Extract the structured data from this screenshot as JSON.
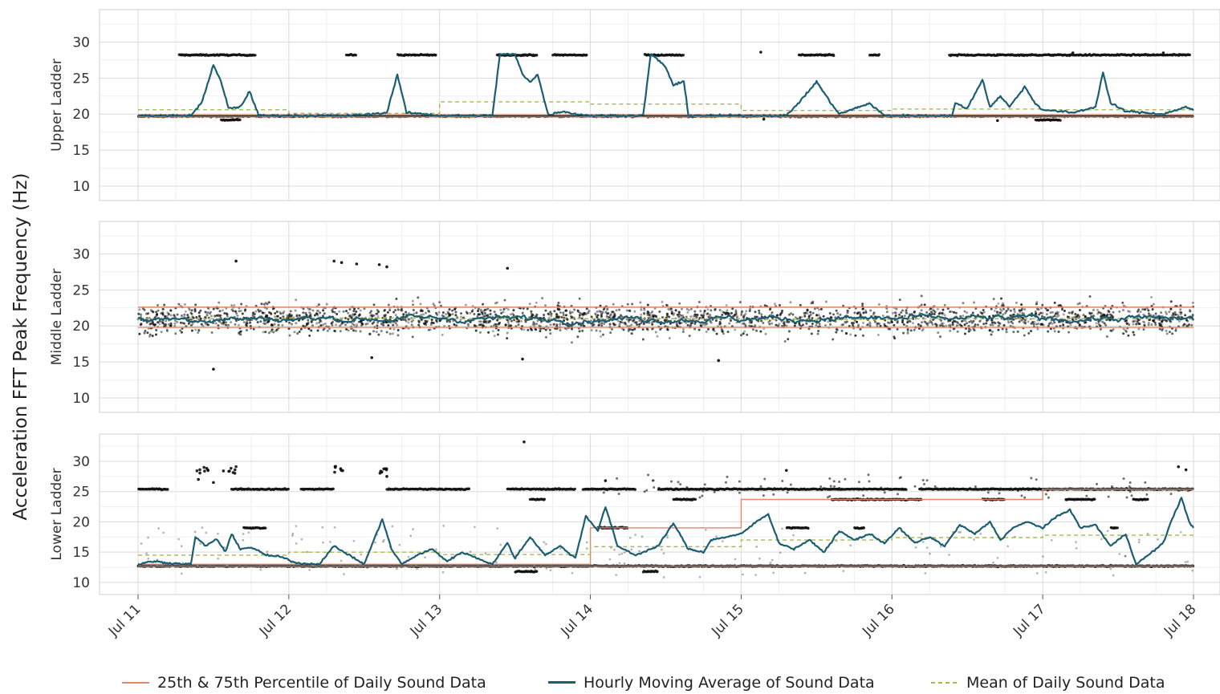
{
  "chart_data": {
    "type": "scatter",
    "ylabel": "Acceleration FFT Peak Frequency (Hz)",
    "x_ticks": [
      "Jul 11",
      "Jul 12",
      "Jul 13",
      "Jul 14",
      "Jul 15",
      "Jul 16",
      "Jul 17",
      "Jul 18"
    ],
    "xlim_days": [
      11,
      18
    ],
    "y_ticks": [
      10,
      15,
      20,
      25,
      30
    ],
    "ylim": [
      8,
      34.5
    ],
    "grid": true,
    "legend_position": "bottom",
    "colors": {
      "percentile": "#e0896a",
      "moving_avg": "#1b5e72",
      "mean": "#a9b84e",
      "points": "#111111",
      "panel_bg": "#ffffff",
      "grid": "#d9d9d9"
    },
    "legend": [
      {
        "label": "25th & 75th Percentile of Daily Sound Data",
        "color": "#e0896a",
        "style": "solid"
      },
      {
        "label": "Hourly Moving Average of Sound Data",
        "color": "#1b5e72",
        "style": "solid"
      },
      {
        "label": "Mean of Daily Sound Data",
        "color": "#a9b84e",
        "style": "dashed"
      }
    ],
    "panels": [
      {
        "label": "Upper Ladder",
        "p25_daily": [
          19.6,
          19.6,
          19.6,
          19.6,
          19.6,
          19.6,
          19.6
        ],
        "p75_daily": [
          19.9,
          19.9,
          19.9,
          19.9,
          19.9,
          19.9,
          19.9
        ],
        "mean_daily": [
          20.6,
          20.1,
          21.7,
          21.4,
          20.5,
          20.7,
          20.6
        ],
        "moving_average": [
          [
            11.0,
            19.8
          ],
          [
            11.35,
            19.8
          ],
          [
            11.42,
            21.5
          ],
          [
            11.5,
            26.8
          ],
          [
            11.55,
            24.5
          ],
          [
            11.6,
            20.8
          ],
          [
            11.68,
            21.0
          ],
          [
            11.74,
            23.2
          ],
          [
            11.8,
            19.8
          ],
          [
            12.4,
            19.8
          ],
          [
            12.55,
            20.0
          ],
          [
            12.65,
            20.2
          ],
          [
            12.72,
            25.5
          ],
          [
            12.78,
            20.2
          ],
          [
            12.9,
            20.0
          ],
          [
            13.0,
            19.8
          ],
          [
            13.35,
            19.8
          ],
          [
            13.4,
            28.3
          ],
          [
            13.5,
            28.3
          ],
          [
            13.55,
            25.5
          ],
          [
            13.6,
            24.5
          ],
          [
            13.65,
            25.5
          ],
          [
            13.72,
            19.9
          ],
          [
            13.82,
            20.4
          ],
          [
            13.9,
            20.0
          ],
          [
            14.0,
            19.8
          ],
          [
            14.35,
            19.8
          ],
          [
            14.4,
            28.3
          ],
          [
            14.45,
            27.5
          ],
          [
            14.5,
            26.5
          ],
          [
            14.55,
            24.0
          ],
          [
            14.62,
            24.5
          ],
          [
            14.65,
            19.8
          ],
          [
            15.3,
            19.8
          ],
          [
            15.4,
            22.0
          ],
          [
            15.5,
            24.5
          ],
          [
            15.58,
            22.0
          ],
          [
            15.65,
            20.0
          ],
          [
            15.85,
            21.5
          ],
          [
            15.95,
            19.8
          ],
          [
            16.4,
            19.8
          ],
          [
            16.42,
            21.5
          ],
          [
            16.5,
            20.8
          ],
          [
            16.6,
            24.8
          ],
          [
            16.65,
            21.0
          ],
          [
            16.72,
            22.5
          ],
          [
            16.78,
            21.0
          ],
          [
            16.88,
            23.8
          ],
          [
            16.95,
            21.5
          ],
          [
            17.0,
            20.6
          ],
          [
            17.2,
            20.2
          ],
          [
            17.35,
            21.0
          ],
          [
            17.4,
            25.8
          ],
          [
            17.45,
            21.5
          ],
          [
            17.55,
            20.4
          ],
          [
            17.8,
            20.0
          ],
          [
            17.95,
            21.0
          ],
          [
            18.0,
            20.5
          ]
        ],
        "point_bands": [
          {
            "value": 28.2,
            "ranges": [
              [
                11.27,
                11.78
              ],
              [
                12.38,
                12.45
              ],
              [
                12.72,
                12.98
              ],
              [
                13.38,
                13.65
              ],
              [
                13.75,
                13.98
              ],
              [
                14.36,
                14.62
              ],
              [
                15.38,
                15.62
              ],
              [
                15.85,
                15.92
              ],
              [
                16.38,
                17.98
              ]
            ]
          },
          {
            "value": 19.2,
            "ranges": [
              [
                11.55,
                11.68
              ],
              [
                16.95,
                17.12
              ]
            ]
          },
          {
            "value": 19.7,
            "ranges": [
              [
                11.0,
                18.0
              ]
            ]
          }
        ],
        "outliers": [
          [
            15.13,
            28.6
          ],
          [
            17.2,
            28.5
          ],
          [
            17.8,
            28.5
          ],
          [
            16.7,
            19.1
          ],
          [
            15.15,
            19.3
          ]
        ]
      },
      {
        "label": "Middle Ladder",
        "p25_daily": [
          19.8,
          19.8,
          19.8,
          19.8,
          19.8,
          19.8,
          19.8
        ],
        "p75_daily": [
          22.6,
          22.6,
          22.6,
          22.6,
          22.6,
          22.6,
          22.6
        ],
        "mean_daily": [
          21.0,
          21.1,
          21.0,
          21.0,
          20.9,
          21.0,
          21.0
        ],
        "moving_average_center": 21.0,
        "moving_average_spread": 1.0,
        "scatter_center": 21.0,
        "scatter_spread": 6.5,
        "outliers": [
          [
            11.65,
            29.0
          ],
          [
            11.5,
            14.0
          ],
          [
            12.3,
            29.0
          ],
          [
            12.35,
            28.8
          ],
          [
            12.45,
            28.6
          ],
          [
            12.6,
            28.5
          ],
          [
            12.65,
            28.2
          ],
          [
            13.45,
            28.0
          ],
          [
            12.55,
            15.6
          ],
          [
            14.85,
            15.2
          ],
          [
            13.55,
            15.4
          ]
        ]
      },
      {
        "label": "Lower Ladder",
        "p25_daily": [
          12.7,
          12.7,
          12.7,
          12.7,
          12.7,
          12.7,
          12.7
        ],
        "p75_daily": [
          13.0,
          13.0,
          13.0,
          19.0,
          23.7,
          23.7,
          25.4
        ],
        "mean_daily": [
          14.5,
          15.0,
          14.6,
          15.9,
          17.0,
          17.4,
          17.8
        ],
        "moving_average": [
          [
            11.0,
            13.0
          ],
          [
            11.1,
            13.5
          ],
          [
            11.2,
            13.2
          ],
          [
            11.35,
            13.0
          ],
          [
            11.38,
            17.5
          ],
          [
            11.45,
            16.0
          ],
          [
            11.52,
            17.2
          ],
          [
            11.58,
            15.0
          ],
          [
            11.62,
            18.0
          ],
          [
            11.68,
            15.5
          ],
          [
            11.75,
            15.8
          ],
          [
            11.85,
            14.5
          ],
          [
            11.95,
            14.2
          ],
          [
            12.05,
            13.2
          ],
          [
            12.2,
            13.0
          ],
          [
            12.3,
            16.0
          ],
          [
            12.4,
            14.5
          ],
          [
            12.5,
            13.0
          ],
          [
            12.62,
            20.5
          ],
          [
            12.68,
            15.5
          ],
          [
            12.75,
            13.0
          ],
          [
            12.85,
            14.5
          ],
          [
            12.95,
            15.5
          ],
          [
            13.05,
            13.5
          ],
          [
            13.15,
            15.0
          ],
          [
            13.25,
            14.0
          ],
          [
            13.35,
            13.0
          ],
          [
            13.45,
            16.5
          ],
          [
            13.5,
            14.0
          ],
          [
            13.6,
            17.5
          ],
          [
            13.7,
            14.5
          ],
          [
            13.8,
            16.0
          ],
          [
            13.9,
            14.0
          ],
          [
            13.97,
            21.0
          ],
          [
            14.05,
            18.5
          ],
          [
            14.1,
            22.5
          ],
          [
            14.18,
            16.0
          ],
          [
            14.3,
            14.5
          ],
          [
            14.45,
            16.0
          ],
          [
            14.55,
            19.8
          ],
          [
            14.65,
            15.5
          ],
          [
            14.75,
            15.0
          ],
          [
            14.8,
            17.0
          ],
          [
            14.9,
            17.5
          ],
          [
            15.0,
            18.0
          ],
          [
            15.1,
            20.0
          ],
          [
            15.18,
            21.3
          ],
          [
            15.25,
            16.5
          ],
          [
            15.35,
            15.5
          ],
          [
            15.45,
            17.0
          ],
          [
            15.55,
            15.0
          ],
          [
            15.65,
            18.5
          ],
          [
            15.75,
            17.0
          ],
          [
            15.85,
            18.0
          ],
          [
            15.95,
            16.5
          ],
          [
            16.05,
            19.0
          ],
          [
            16.15,
            16.5
          ],
          [
            16.25,
            17.5
          ],
          [
            16.35,
            16.0
          ],
          [
            16.45,
            19.5
          ],
          [
            16.55,
            18.0
          ],
          [
            16.65,
            20.0
          ],
          [
            16.72,
            17.0
          ],
          [
            16.8,
            19.0
          ],
          [
            16.9,
            20.0
          ],
          [
            17.0,
            19.0
          ],
          [
            17.1,
            21.0
          ],
          [
            17.18,
            22.0
          ],
          [
            17.25,
            19.0
          ],
          [
            17.35,
            19.5
          ],
          [
            17.45,
            16.0
          ],
          [
            17.55,
            18.0
          ],
          [
            17.62,
            13.0
          ],
          [
            17.7,
            14.5
          ],
          [
            17.8,
            16.5
          ],
          [
            17.85,
            20.0
          ],
          [
            17.92,
            24.0
          ],
          [
            17.97,
            20.0
          ],
          [
            18.0,
            19.0
          ]
        ],
        "point_bands": [
          {
            "value": 25.4,
            "ranges": [
              [
                11.0,
                11.2
              ],
              [
                11.62,
                12.0
              ],
              [
                12.08,
                12.3
              ],
              [
                12.65,
                13.2
              ],
              [
                13.45,
                13.9
              ],
              [
                13.95,
                14.3
              ],
              [
                14.45,
                16.1
              ],
              [
                16.18,
                18.0
              ]
            ]
          },
          {
            "value": 23.7,
            "ranges": [
              [
                13.6,
                13.7
              ],
              [
                14.55,
                14.7
              ],
              [
                15.6,
                16.2
              ],
              [
                16.6,
                16.75
              ],
              [
                17.15,
                17.35
              ],
              [
                17.6,
                17.7
              ]
            ]
          },
          {
            "value": 19.0,
            "ranges": [
              [
                11.7,
                11.85
              ],
              [
                14.05,
                14.25
              ],
              [
                15.3,
                15.45
              ],
              [
                15.75,
                15.82
              ],
              [
                17.45,
                17.5
              ]
            ]
          },
          {
            "value": 12.7,
            "ranges": [
              [
                11.0,
                18.0
              ]
            ]
          },
          {
            "value": 11.8,
            "ranges": [
              [
                13.5,
                13.65
              ],
              [
                14.35,
                14.45
              ]
            ]
          }
        ],
        "cluster_29": [
          [
            11.37,
            11.47
          ],
          [
            11.55,
            11.65
          ],
          [
            12.3,
            12.37
          ],
          [
            12.6,
            12.65
          ]
        ],
        "outliers": [
          [
            13.56,
            33.2
          ],
          [
            11.4,
            27.0
          ],
          [
            11.5,
            26.5
          ],
          [
            12.65,
            27.5
          ],
          [
            14.1,
            26.8
          ],
          [
            15.3,
            28.5
          ],
          [
            17.9,
            29.1
          ],
          [
            17.95,
            28.6
          ],
          [
            13.0,
            25.4
          ]
        ]
      }
    ]
  }
}
